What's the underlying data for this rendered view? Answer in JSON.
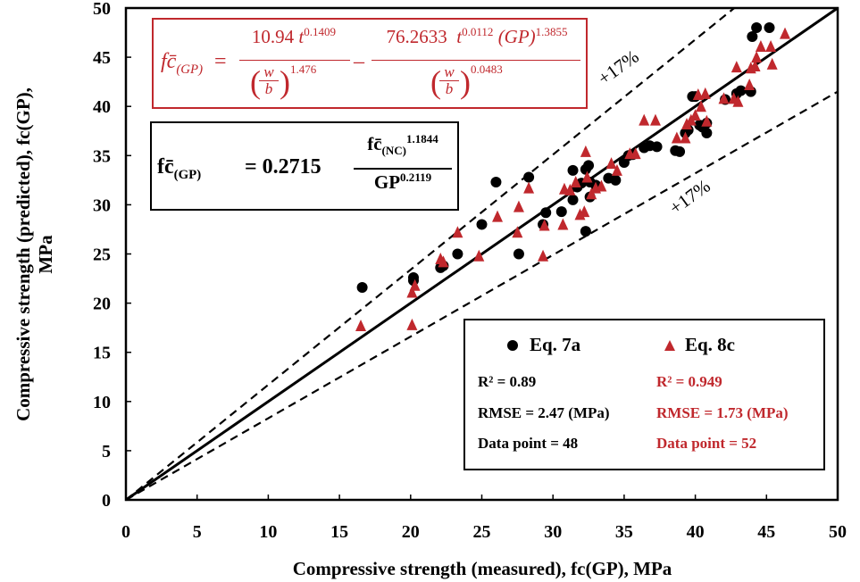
{
  "chart_data": {
    "type": "scatter",
    "xlabel": "Compressive strength (measured), fc(GP), MPa",
    "ylabel_line1": "Compressive strength (predicted), fc(GP),",
    "ylabel_line2": "MPa",
    "xlim": [
      0,
      50
    ],
    "ylim": [
      0,
      50
    ],
    "xticks": [
      0,
      5,
      10,
      15,
      20,
      25,
      30,
      35,
      40,
      45,
      50
    ],
    "yticks": [
      0,
      5,
      10,
      15,
      20,
      25,
      30,
      35,
      40,
      45,
      50
    ],
    "grid": false,
    "legend_position": "bottom-right",
    "reference_lines": [
      {
        "kind": "identity",
        "slope": 1.0,
        "style": "solid"
      },
      {
        "kind": "upper",
        "slope": 1.17,
        "style": "dashed",
        "label": "+17%"
      },
      {
        "kind": "lower",
        "slope": 0.83,
        "style": "dashed",
        "label": "+17%"
      }
    ],
    "series": [
      {
        "name": "Eq. 7a",
        "marker": "circle",
        "color": "#000000",
        "stats": {
          "r2": "R² = 0.89",
          "rmse": "RMSE = 2.47 (MPa)",
          "n": "Data point = 48"
        },
        "points": [
          [
            16.6,
            21.6
          ],
          [
            20.2,
            22.3
          ],
          [
            20.2,
            22.6
          ],
          [
            22.1,
            23.6
          ],
          [
            22.3,
            23.8
          ],
          [
            23.3,
            25.0
          ],
          [
            25.0,
            28.0
          ],
          [
            26.0,
            32.3
          ],
          [
            27.6,
            25.0
          ],
          [
            28.3,
            32.8
          ],
          [
            29.3,
            28.0
          ],
          [
            29.5,
            29.2
          ],
          [
            30.6,
            29.3
          ],
          [
            31.4,
            30.5
          ],
          [
            31.4,
            33.5
          ],
          [
            31.7,
            31.8
          ],
          [
            32.0,
            32.2
          ],
          [
            32.3,
            27.3
          ],
          [
            32.3,
            33.6
          ],
          [
            32.5,
            34.0
          ],
          [
            32.6,
            30.8
          ],
          [
            32.6,
            32.3
          ],
          [
            33.0,
            32.0
          ],
          [
            33.9,
            32.7
          ],
          [
            34.4,
            32.5
          ],
          [
            35.0,
            34.3
          ],
          [
            35.3,
            35.0
          ],
          [
            35.6,
            35.1
          ],
          [
            36.4,
            35.8
          ],
          [
            36.8,
            36.0
          ],
          [
            37.3,
            35.9
          ],
          [
            38.6,
            35.5
          ],
          [
            38.9,
            35.4
          ],
          [
            39.3,
            37.3
          ],
          [
            39.5,
            37.6
          ],
          [
            39.8,
            41.0
          ],
          [
            40.0,
            41.0
          ],
          [
            40.3,
            38.1
          ],
          [
            40.5,
            37.9
          ],
          [
            40.8,
            37.3
          ],
          [
            40.8,
            38.3
          ],
          [
            42.1,
            40.7
          ],
          [
            42.9,
            41.3
          ],
          [
            43.2,
            41.6
          ],
          [
            43.9,
            41.5
          ],
          [
            44.0,
            47.1
          ],
          [
            44.3,
            48.0
          ],
          [
            45.2,
            48.0
          ]
        ]
      },
      {
        "name": "Eq. 8c",
        "marker": "triangle",
        "color": "#c0282d",
        "stats": {
          "r2": "R² = 0.949",
          "rmse": "RMSE = 1.73 (MPa)",
          "n": "Data point = 52"
        },
        "points": [
          [
            16.5,
            17.7
          ],
          [
            20.1,
            17.8
          ],
          [
            20.1,
            21.1
          ],
          [
            20.3,
            21.8
          ],
          [
            22.1,
            24.5
          ],
          [
            22.3,
            24.2
          ],
          [
            23.3,
            27.2
          ],
          [
            24.8,
            24.8
          ],
          [
            26.1,
            28.8
          ],
          [
            27.5,
            27.2
          ],
          [
            27.6,
            29.8
          ],
          [
            28.3,
            31.7
          ],
          [
            29.3,
            24.8
          ],
          [
            29.4,
            27.9
          ],
          [
            30.7,
            28.0
          ],
          [
            30.8,
            31.6
          ],
          [
            31.2,
            31.5
          ],
          [
            31.6,
            32.3
          ],
          [
            31.9,
            29.0
          ],
          [
            32.2,
            29.3
          ],
          [
            32.3,
            35.4
          ],
          [
            32.4,
            32.8
          ],
          [
            32.7,
            31.1
          ],
          [
            33.0,
            31.7
          ],
          [
            33.4,
            31.9
          ],
          [
            34.1,
            34.2
          ],
          [
            34.5,
            33.5
          ],
          [
            35.4,
            35.2
          ],
          [
            35.8,
            35.2
          ],
          [
            36.4,
            38.6
          ],
          [
            37.2,
            38.6
          ],
          [
            38.7,
            36.8
          ],
          [
            39.3,
            36.8
          ],
          [
            39.4,
            38.2
          ],
          [
            39.7,
            38.6
          ],
          [
            40.0,
            39.1
          ],
          [
            40.2,
            41.2
          ],
          [
            40.4,
            40.0
          ],
          [
            40.7,
            41.3
          ],
          [
            40.8,
            38.5
          ],
          [
            42.0,
            40.8
          ],
          [
            42.7,
            40.8
          ],
          [
            42.9,
            44.0
          ],
          [
            43.0,
            40.5
          ],
          [
            43.8,
            42.2
          ],
          [
            43.9,
            43.9
          ],
          [
            44.2,
            44.1
          ],
          [
            44.3,
            45.0
          ],
          [
            44.6,
            46.1
          ],
          [
            45.3,
            46.1
          ],
          [
            45.4,
            44.3
          ],
          [
            46.3,
            47.4
          ]
        ]
      }
    ]
  },
  "equation_red": {
    "lhs": "fc̄",
    "lhs_sub": "(GP)",
    "equals": "=",
    "minus": "–",
    "t1_coef": "10.94",
    "t1_t": "t",
    "t1_t_exp": "0.1409",
    "t1_w": "w",
    "t1_b": "b",
    "t1_wb_exp": "1.476",
    "t2_coef": "76.2633",
    "t2_t": "t",
    "t2_t_exp": "0.0112",
    "t2_gp": "(GP)",
    "t2_gp_exp": "1.3855",
    "t2_w": "w",
    "t2_b": "b",
    "t2_wb_exp": "0.0483"
  },
  "equation_black": {
    "lhs": "fc̄",
    "lhs_sub": "(GP)",
    "equals_coef": "= 0.2715",
    "num": "fc̄",
    "num_sub": "(NC)",
    "num_exp": "1.1844",
    "den": "GP",
    "den_exp": "0.2119"
  }
}
